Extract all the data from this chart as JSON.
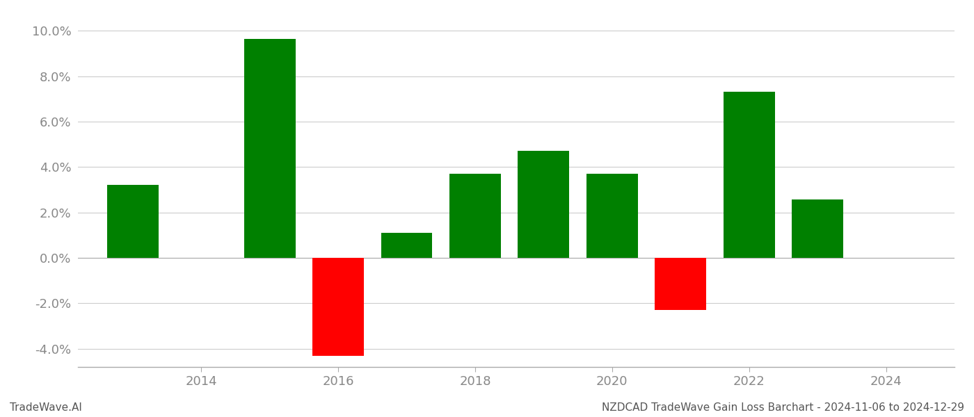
{
  "years": [
    2013,
    2015,
    2016,
    2017,
    2018,
    2019,
    2020,
    2021,
    2022,
    2023
  ],
  "values": [
    3.2,
    9.65,
    -4.3,
    1.1,
    3.7,
    4.72,
    3.7,
    -2.3,
    7.32,
    2.58
  ],
  "colors": [
    "#008000",
    "#008000",
    "#ff0000",
    "#008000",
    "#008000",
    "#008000",
    "#008000",
    "#ff0000",
    "#008000",
    "#008000"
  ],
  "ylim": [
    -4.8,
    10.8
  ],
  "yticks": [
    -4.0,
    -2.0,
    0.0,
    2.0,
    4.0,
    6.0,
    8.0,
    10.0
  ],
  "xticks": [
    2014,
    2016,
    2018,
    2020,
    2022,
    2024
  ],
  "xlim": [
    2012.2,
    2025.0
  ],
  "footer_left": "TradeWave.AI",
  "footer_right": "NZDCAD TradeWave Gain Loss Barchart - 2024-11-06 to 2024-12-29",
  "background_color": "#ffffff",
  "grid_color": "#cccccc",
  "bar_width": 0.75
}
